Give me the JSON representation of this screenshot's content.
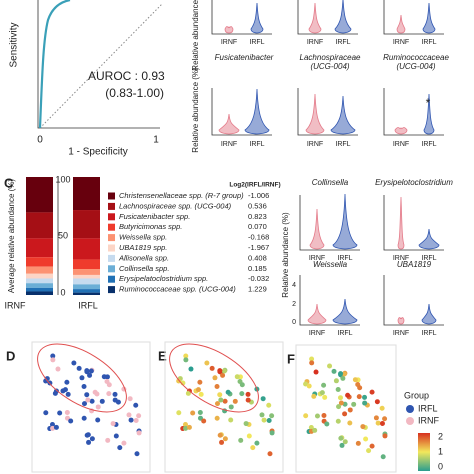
{
  "panel_b": {
    "y_label": "Sensitivity",
    "x_label": "1 - Specificity",
    "x_ticks": [
      "0",
      "1"
    ],
    "auroc": "AUROC : 0.93",
    "ci": "(0.83-1.00)"
  },
  "violin_y_label": "Relative abundance (%)",
  "groups": [
    "IRNF",
    "IRFL"
  ],
  "violins": [
    {
      "title": "Fusicatenibacter"
    },
    {
      "title": "Lachnospiraceae",
      "subtitle": "(UCG-004)"
    },
    {
      "title": "Ruminococcaceae",
      "subtitle": "(UCG-004)",
      "mark": "*"
    },
    {
      "title": "Collinsella"
    },
    {
      "title": "Erysipelotoclostridium"
    },
    {
      "title": "Weissella",
      "yticks": [
        "4",
        "2",
        "0"
      ]
    },
    {
      "title": "UBA1819"
    }
  ],
  "panel_c": {
    "label": "C",
    "y_label": "Average relative abundance (%)",
    "yticks": [
      "100",
      "50",
      "0"
    ],
    "legend_header": "Log2(IRFL/IRNF)",
    "legend": [
      {
        "name": "Christensenellaceae spp. (R-7 group)",
        "value": "-1.006"
      },
      {
        "name": "Lachnospiraceae spp. (UCG-004)",
        "value": "0.536"
      },
      {
        "name": "Fusicatenibacter spp.",
        "value": "0.823"
      },
      {
        "name": "Butyricimonas spp.",
        "value": "0.070"
      },
      {
        "name": "Weissella spp.",
        "value": "-0.168"
      },
      {
        "name": "UBA1819 spp.",
        "value": "-1.967"
      },
      {
        "name": "Allisonella spp.",
        "value": "0.408"
      },
      {
        "name": "Collinsella spp.",
        "value": "0.185"
      },
      {
        "name": "Erysipelatoclostridium spp.",
        "value": "-0.032"
      },
      {
        "name": "Ruminococcaceae spp. (UCG-004)",
        "value": "1.229"
      }
    ]
  },
  "panel_labels": [
    "D",
    "E",
    "F"
  ],
  "group_legend": {
    "title": "Group",
    "items": [
      "IRFL",
      "IRNF"
    ]
  },
  "color_scale": [
    "2",
    "1",
    "0"
  ]
}
